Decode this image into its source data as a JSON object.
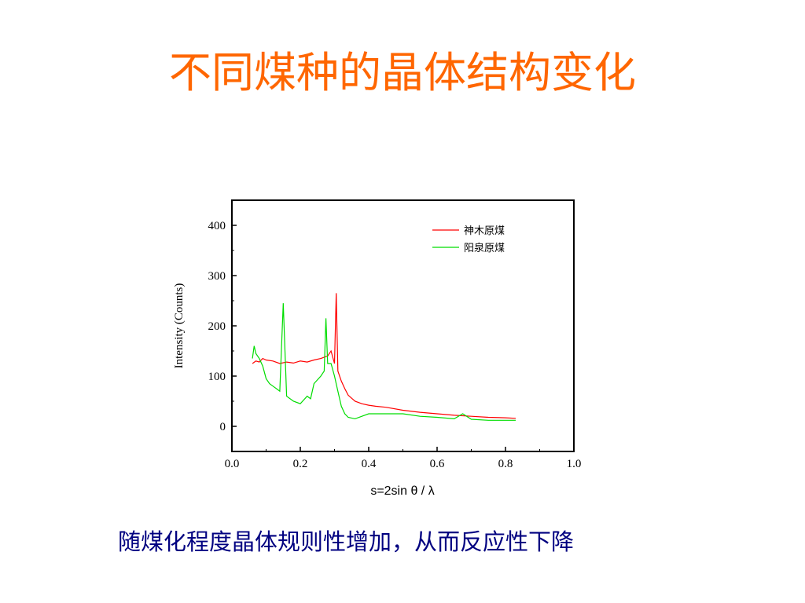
{
  "slide": {
    "title": "不同煤种的晶体结构变化",
    "caption": "随煤化程度晶体规则性增加，从而反应性下降",
    "title_color": "#ff6600",
    "caption_color": "#000080"
  },
  "chart_data": {
    "type": "line",
    "title": "",
    "xlabel": "s=2sin θ / λ",
    "ylabel": "Intensity (Counts)",
    "xlim": [
      0.0,
      1.0
    ],
    "ylim": [
      -50,
      450
    ],
    "xticks": [
      0.0,
      0.2,
      0.4,
      0.6,
      0.8,
      1.0
    ],
    "xtick_labels": [
      "0.0",
      "0.2",
      "0.4",
      "0.6",
      "0.8",
      "1.0"
    ],
    "yticks": [
      0,
      100,
      200,
      300,
      400
    ],
    "ytick_labels": [
      "0",
      "100",
      "200",
      "300",
      "400"
    ],
    "legend_position": "top-right",
    "grid": false,
    "series": [
      {
        "name": "神木原煤",
        "color": "#ff0000",
        "x": [
          0.06,
          0.07,
          0.08,
          0.09,
          0.1,
          0.12,
          0.14,
          0.16,
          0.18,
          0.2,
          0.22,
          0.24,
          0.26,
          0.28,
          0.29,
          0.3,
          0.305,
          0.31,
          0.32,
          0.33,
          0.34,
          0.36,
          0.38,
          0.4,
          0.42,
          0.45,
          0.5,
          0.55,
          0.6,
          0.65,
          0.7,
          0.75,
          0.8,
          0.83
        ],
        "y": [
          125,
          130,
          128,
          135,
          132,
          130,
          125,
          128,
          126,
          130,
          128,
          132,
          135,
          140,
          150,
          125,
          265,
          110,
          90,
          75,
          62,
          50,
          45,
          42,
          40,
          38,
          32,
          28,
          25,
          22,
          20,
          18,
          17,
          16
        ]
      },
      {
        "name": "阳泉原煤",
        "color": "#00dd00",
        "x": [
          0.06,
          0.065,
          0.07,
          0.08,
          0.09,
          0.1,
          0.11,
          0.12,
          0.13,
          0.14,
          0.15,
          0.16,
          0.18,
          0.2,
          0.22,
          0.23,
          0.24,
          0.26,
          0.27,
          0.275,
          0.28,
          0.29,
          0.3,
          0.31,
          0.32,
          0.33,
          0.34,
          0.36,
          0.38,
          0.4,
          0.45,
          0.5,
          0.55,
          0.6,
          0.65,
          0.675,
          0.7,
          0.75,
          0.8,
          0.83
        ],
        "y": [
          135,
          160,
          145,
          135,
          120,
          95,
          85,
          80,
          75,
          70,
          245,
          60,
          50,
          45,
          60,
          55,
          85,
          100,
          110,
          215,
          125,
          125,
          100,
          70,
          40,
          25,
          18,
          15,
          20,
          25,
          25,
          25,
          20,
          18,
          15,
          25,
          14,
          12,
          12,
          12
        ]
      }
    ]
  }
}
